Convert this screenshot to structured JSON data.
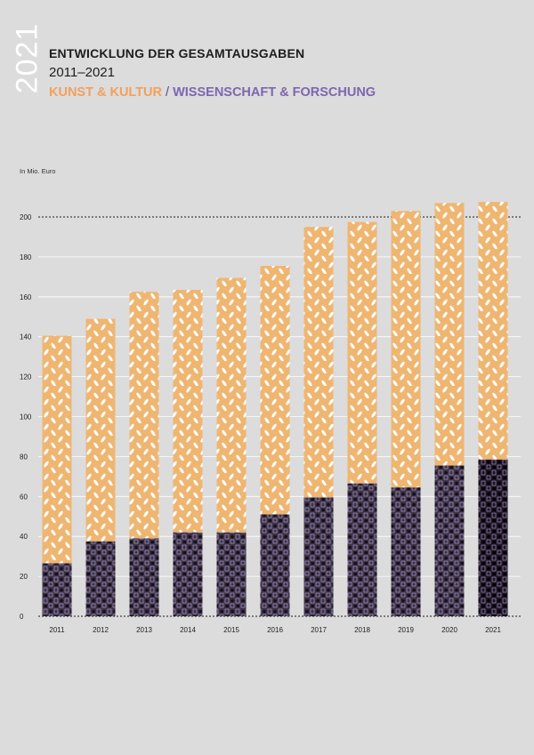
{
  "header": {
    "year_vertical": "2021",
    "title": "ENTWICKLUNG DER GESAMTAUSGABEN",
    "subtitle": "2011–2021",
    "legend_kunst": "KUNST & KULTUR",
    "legend_sep": "/",
    "legend_wiss": "WISSENSCHAFT & FORSCHUNG"
  },
  "colors": {
    "background": "#dcdcdc",
    "kunst": "#efb672",
    "wissenschaft": "#3d3247",
    "wissenschaft_2021": "#1f1526",
    "pattern_light": "#ffffff"
  },
  "chart_data": {
    "type": "bar",
    "stacked": true,
    "ylabel": "In Mio. Euro",
    "ylim": [
      0,
      210
    ],
    "yticks": [
      0,
      20,
      40,
      60,
      80,
      100,
      120,
      140,
      160,
      180,
      200
    ],
    "grid": true,
    "categories": [
      "2011",
      "2012",
      "2013",
      "2014",
      "2015",
      "2016",
      "2017",
      "2018",
      "2019",
      "2020",
      "2021"
    ],
    "series": [
      {
        "name": "WISSENSCHAFT & FORSCHUNG",
        "values": [
          26.5,
          37.5,
          39,
          42,
          42,
          51,
          59.5,
          66.5,
          64.5,
          75.5,
          78.5
        ]
      },
      {
        "name": "KUNST & KULTUR",
        "values": [
          114,
          111.5,
          123.5,
          121.5,
          127.5,
          124.5,
          135.5,
          131,
          138.5,
          131.5,
          129
        ]
      }
    ]
  }
}
